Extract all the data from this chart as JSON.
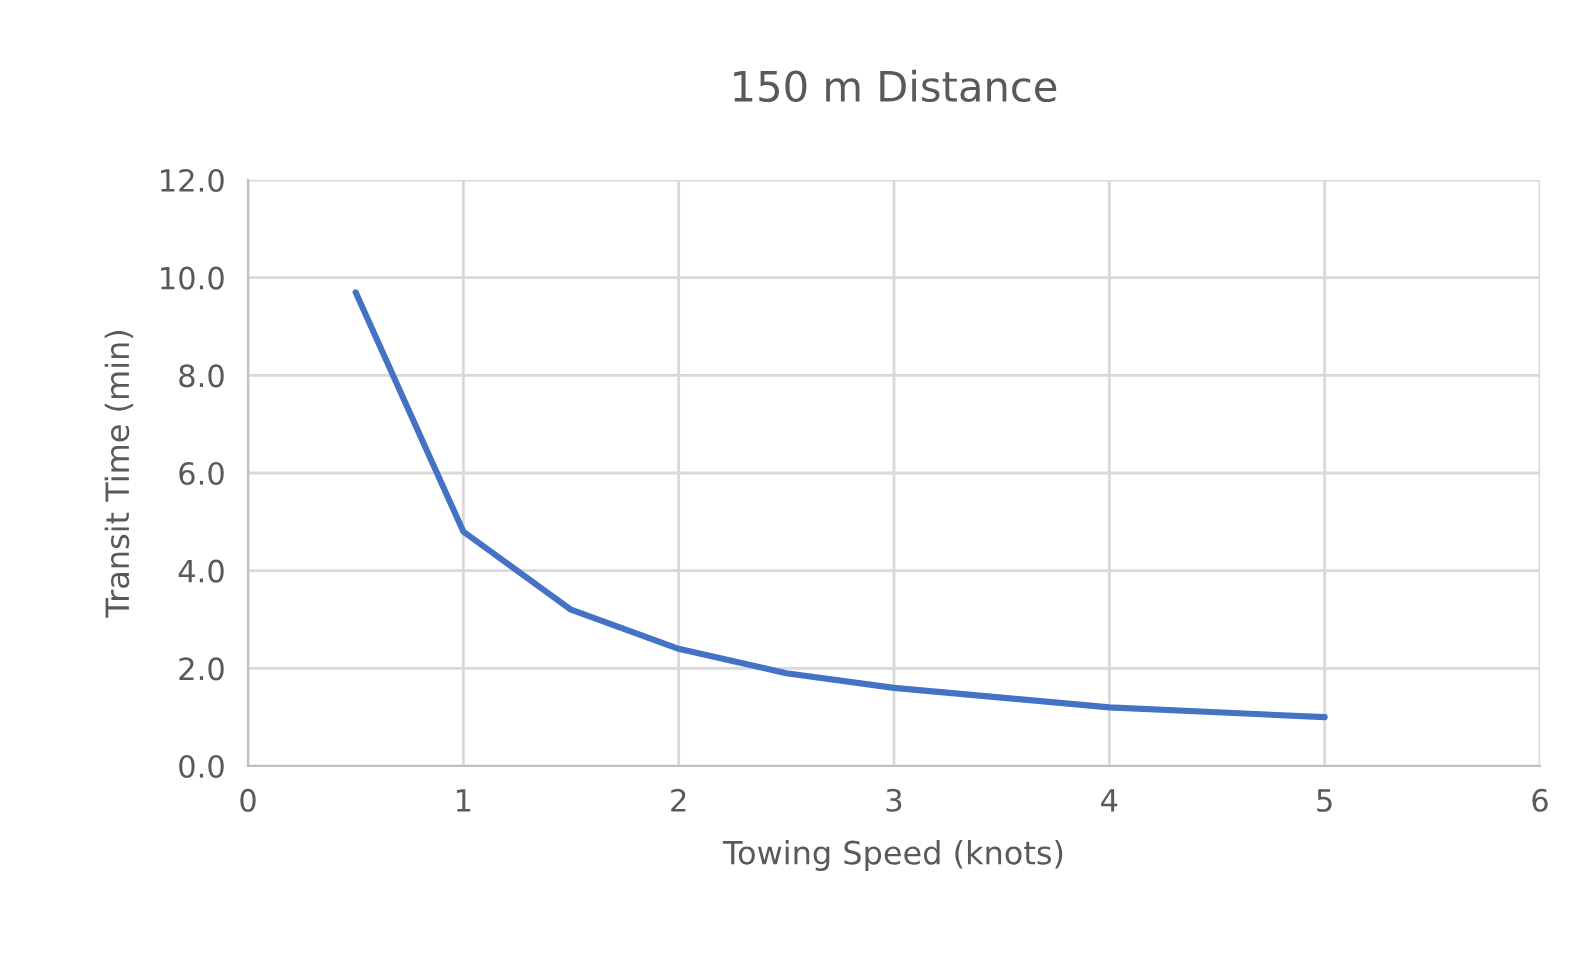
{
  "chart_data": {
    "type": "line",
    "title": "150 m Distance",
    "xlabel": "Towing Speed (knots)",
    "ylabel": "Transit Time (min)",
    "x": [
      0.5,
      1,
      1.5,
      2,
      2.5,
      3,
      3.5,
      4,
      4.5,
      5
    ],
    "series": [
      {
        "color": "#4472c4",
        "values": [
          9.7,
          4.8,
          3.2,
          2.4,
          1.9,
          1.6,
          1.4,
          1.2,
          1.1,
          1.0
        ]
      }
    ],
    "xlim": [
      0,
      6
    ],
    "xticks": [
      0,
      1,
      2,
      3,
      4,
      5,
      6
    ],
    "ylim": [
      0,
      12
    ],
    "yticks": [
      {
        "value": 0,
        "label": "0.0"
      },
      {
        "value": 2,
        "label": "2.0"
      },
      {
        "value": 4,
        "label": "4.0"
      },
      {
        "value": 6,
        "label": "6.0"
      },
      {
        "value": 8,
        "label": "8.0"
      },
      {
        "value": 10,
        "label": "10.0"
      },
      {
        "value": 12,
        "label": "12.0"
      }
    ],
    "grid": true,
    "marker": "none",
    "line_style": "solid"
  }
}
